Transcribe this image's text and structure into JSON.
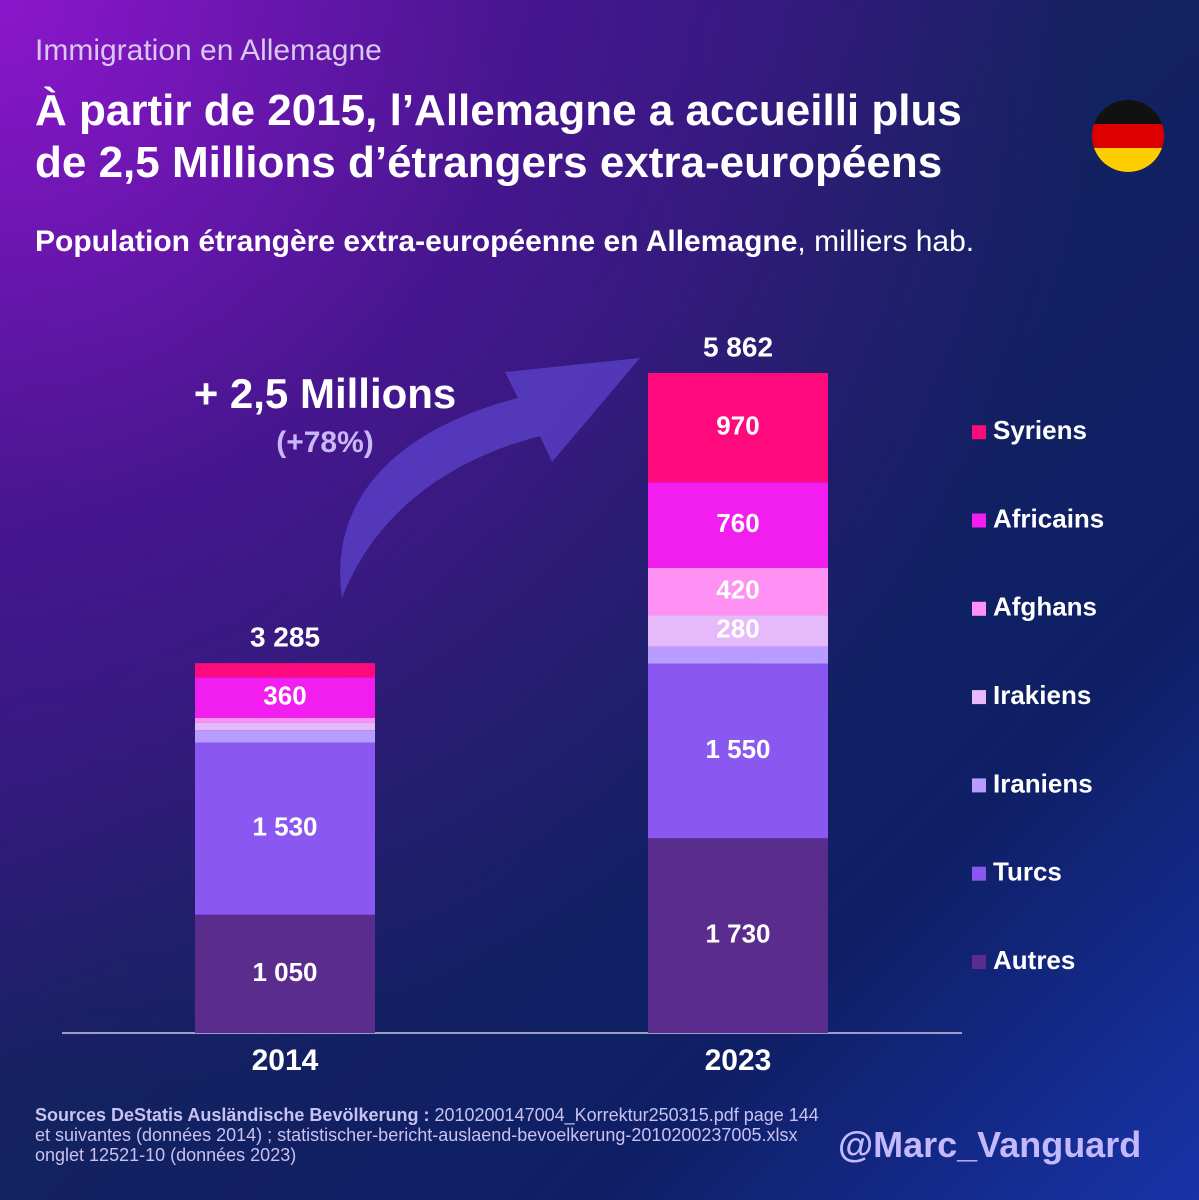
{
  "kicker": "Immigration en Allemagne",
  "credit": "@Marc_Vanguard",
  "source_label": "Sources DeStatis Ausländische Bevölkerung :",
  "source": "2010200147004_Korrektur250315.pdf page 144 et suivantes (données 2014) ; statistischer-bericht-auslaend-bevoelkerung-2010200237005.xlsx onglet 12521-10  (données 2023)",
  "chart_data": {
    "type": "stacked_bar",
    "title": [
      "À partir de 2015, l’Allemagne a accueilli plus",
      "de 2,5 Millions d’étrangers extra-européens"
    ],
    "subtitle": "Population étrangère extra-européenne en Allemagne",
    "subtitle_unit": ", milliers hab.",
    "annotation": "+ 2,5 Millions",
    "annotation_sub": "(+78%)",
    "categories": [
      "2014",
      "2023"
    ],
    "totals": [
      3285,
      5862
    ],
    "total_labels": [
      "3 285",
      "5 862"
    ],
    "series": [
      {
        "name": "Autres",
        "color": "#5a2c8e",
        "values": [
          1050,
          1730
        ],
        "value_labels": [
          "1 050",
          "1 730"
        ]
      },
      {
        "name": "Turcs",
        "color": "#8a58f0",
        "values": [
          1530,
          1550
        ],
        "value_labels": [
          "1 530",
          "1 550"
        ]
      },
      {
        "name": "Iraniens",
        "color": "#b89cff",
        "values": [
          110,
          152
        ],
        "value_labels": [
          null,
          null
        ]
      },
      {
        "name": "Irakiens",
        "color": "#e6b9fb",
        "values": [
          70,
          280
        ],
        "value_labels": [
          null,
          "280"
        ]
      },
      {
        "name": "Afghans",
        "color": "#ff90f4",
        "values": [
          40,
          420
        ],
        "value_labels": [
          null,
          "420"
        ]
      },
      {
        "name": "Africains",
        "color": "#f21ef0",
        "values": [
          360,
          760
        ],
        "value_labels": [
          "360",
          "760"
        ]
      },
      {
        "name": "Syriens",
        "color": "#ff0a7c",
        "values": [
          125,
          970
        ],
        "value_labels": [
          null,
          "970"
        ]
      }
    ]
  }
}
